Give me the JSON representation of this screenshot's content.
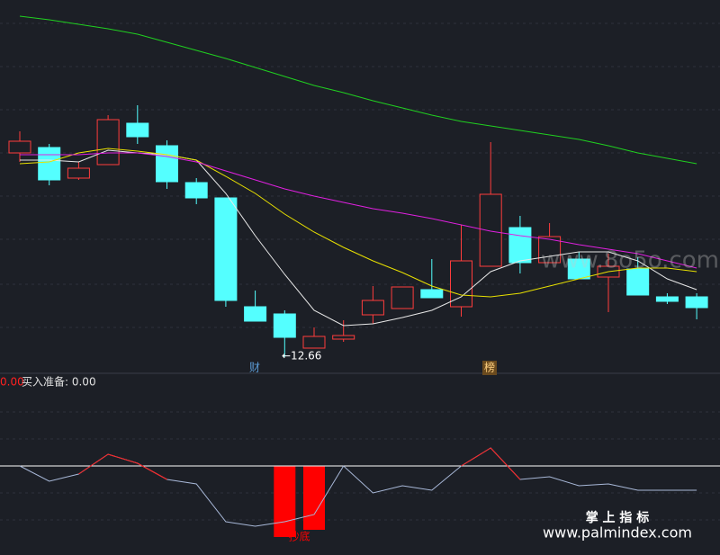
{
  "chart_data": [
    {
      "type": "candlestick",
      "categories": [
        null,
        null,
        null,
        null,
        null,
        null,
        null,
        null,
        null,
        null,
        null,
        null,
        null,
        null,
        null,
        null,
        null,
        null,
        null,
        null,
        null,
        null,
        null,
        null
      ],
      "open": [
        14.93,
        14.99,
        14.65,
        14.8,
        15.26,
        15.01,
        14.6,
        14.43,
        13.22,
        13.14,
        12.76,
        12.86,
        13.13,
        13.2,
        13.41,
        13.22,
        13.67,
        14.1,
        13.71,
        13.75,
        13.55,
        13.64,
        13.33,
        13.33
      ],
      "close": [
        15.06,
        14.63,
        14.76,
        15.3,
        15.11,
        14.61,
        14.43,
        13.29,
        13.06,
        12.88,
        12.89,
        12.9,
        13.29,
        13.44,
        13.32,
        13.73,
        14.47,
        13.71,
        14.0,
        13.53,
        13.67,
        13.35,
        13.28,
        13.21
      ],
      "high": [
        15.17,
        15.03,
        14.83,
        15.35,
        15.46,
        15.07,
        14.65,
        14.43,
        13.4,
        13.18,
        12.99,
        13.07,
        13.45,
        13.44,
        13.75,
        14.13,
        15.05,
        14.23,
        14.15,
        13.83,
        13.81,
        13.77,
        13.37,
        13.37
      ],
      "low": [
        14.83,
        14.57,
        14.63,
        14.8,
        15.03,
        14.53,
        14.36,
        13.22,
        13.06,
        12.66,
        12.76,
        12.83,
        13.03,
        13.2,
        13.32,
        13.11,
        13.67,
        13.59,
        13.71,
        13.53,
        13.16,
        13.35,
        13.25,
        13.08
      ],
      "up_color": "#ff3c3c",
      "down_color": "#54ffff",
      "lines": [
        {
          "color": "#e8e8e8",
          "values": [
            14.85,
            14.85,
            14.83,
            14.96,
            14.93,
            14.91,
            14.85,
            14.48,
            14.01,
            13.58,
            13.18,
            13.01,
            13.03,
            13.1,
            13.18,
            13.33,
            13.61,
            13.73,
            13.78,
            13.83,
            13.83,
            13.73,
            13.53,
            13.41
          ]
        },
        {
          "color": "#e8e000",
          "values": [
            14.81,
            14.83,
            14.93,
            14.98,
            14.95,
            14.91,
            14.85,
            14.67,
            14.48,
            14.25,
            14.05,
            13.88,
            13.73,
            13.6,
            13.45,
            13.35,
            13.33,
            13.37,
            13.45,
            13.53,
            13.61,
            13.65,
            13.65,
            13.61
          ]
        },
        {
          "color": "#e020e0",
          "values": [
            14.91,
            14.91,
            14.91,
            14.93,
            14.93,
            14.89,
            14.83,
            14.73,
            14.63,
            14.53,
            14.45,
            14.38,
            14.31,
            14.26,
            14.2,
            14.13,
            14.06,
            14.01,
            13.97,
            13.91,
            13.86,
            13.81,
            13.73,
            13.65
          ]
        },
        {
          "color": "#20d020",
          "values": [
            16.45,
            16.41,
            16.36,
            16.31,
            16.25,
            16.16,
            16.07,
            15.98,
            15.88,
            15.78,
            15.68,
            15.6,
            15.51,
            15.43,
            15.35,
            15.28,
            15.23,
            15.18,
            15.13,
            15.08,
            15.01,
            14.93,
            14.87,
            14.81
          ]
        }
      ],
      "ylim": [
        12.48,
        16.63
      ],
      "annotations": [
        "财",
        "榜",
        "←12.66"
      ]
    },
    {
      "type": "indicator",
      "legend_texts": [
        "0.00",
        "买入准备: 0.00"
      ],
      "ylim": [
        -0.99,
        1.03
      ],
      "reference_line": 0,
      "line": {
        "color": "#a8b8d8",
        "positive_color": "#ff2020",
        "values": [
          0,
          -0.17,
          -0.09,
          0.13,
          0.03,
          -0.15,
          -0.2,
          -0.62,
          -0.67,
          -0.62,
          -0.54,
          0.0,
          -0.3,
          -0.22,
          -0.27,
          0.0,
          0.2,
          -0.15,
          -0.12,
          -0.22,
          -0.2,
          -0.27,
          -0.27,
          -0.27
        ]
      },
      "bars": {
        "color": "#ff0000",
        "label": "抄底",
        "values": [
          null,
          null,
          null,
          null,
          null,
          null,
          null,
          null,
          null,
          -0.79,
          -0.71,
          null,
          null,
          null,
          null,
          null,
          null,
          null,
          null,
          null,
          null,
          null,
          null,
          null
        ]
      }
    }
  ],
  "watermarks": [
    "www.8o5o.com",
    "掌 上 指 标",
    "www.palmindex.com"
  ]
}
